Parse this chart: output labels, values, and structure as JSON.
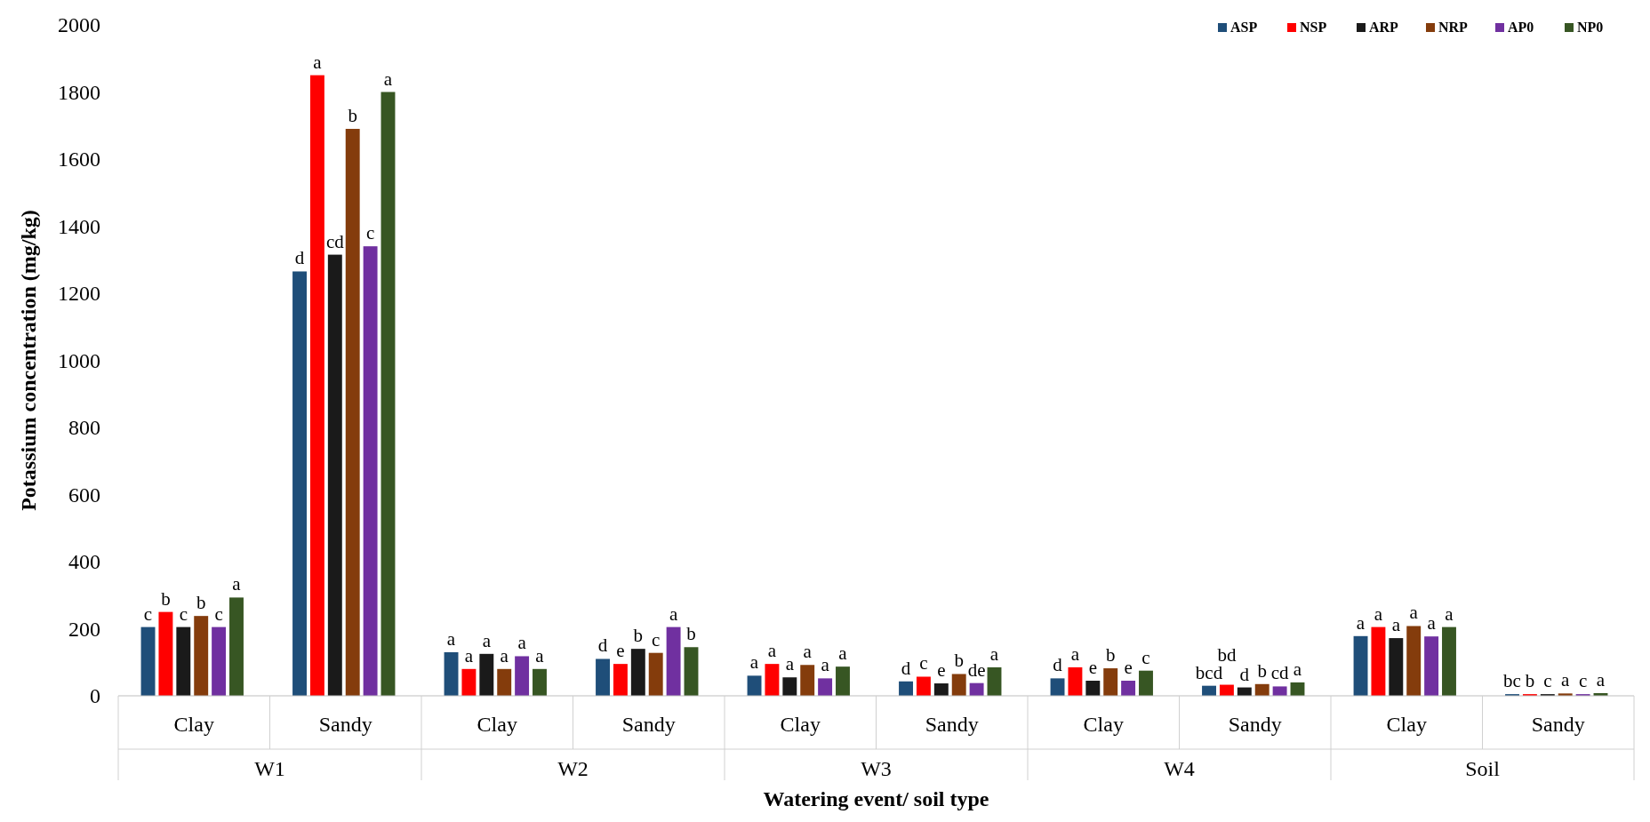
{
  "chart_data": {
    "type": "bar",
    "xlabel": "Watering event/ soil type",
    "ylabel": "Potassium concentration (mg/kg)",
    "categories": [
      "Clay",
      "Sandy",
      "Clay",
      "Sandy",
      "Clay",
      "Sandy",
      "Clay",
      "Sandy",
      "Clay",
      "Sandy"
    ],
    "annotations": [
      "W1",
      "W2",
      "W3",
      "W4",
      "Soil"
    ],
    "series": [
      {
        "name": "ASP",
        "color": "#1f4e79",
        "values": [
          205,
          1265,
          130,
          110,
          60,
          43,
          52,
          30,
          178,
          5
        ],
        "value_labels": [
          "c",
          "d",
          "a",
          "d",
          "a",
          "d",
          "d",
          "bcd",
          "a",
          "bc"
        ]
      },
      {
        "name": "NSP",
        "color": "#ff0000",
        "values": [
          250,
          1850,
          80,
          95,
          95,
          57,
          85,
          33,
          205,
          5
        ],
        "value_labels": [
          "b",
          "a",
          "a",
          "e",
          "a",
          "c",
          "a",
          "bd",
          "a",
          "b"
        ]
      },
      {
        "name": "ARP",
        "color": "#1a1a1a",
        "values": [
          205,
          1315,
          125,
          140,
          55,
          37,
          45,
          25,
          172,
          5
        ],
        "value_labels": [
          "c",
          "cd",
          "a",
          "b",
          "a",
          "e",
          "e",
          "d",
          "a",
          "c"
        ]
      },
      {
        "name": "NRP",
        "color": "#843c0c",
        "values": [
          238,
          1690,
          80,
          128,
          92,
          65,
          82,
          35,
          208,
          7
        ],
        "value_labels": [
          "b",
          "b",
          "a",
          "c",
          "a",
          "b",
          "b",
          "b",
          "a",
          "a"
        ]
      },
      {
        "name": "AP0",
        "color": "#7030a0",
        "values": [
          205,
          1340,
          118,
          205,
          52,
          38,
          45,
          28,
          177,
          5
        ],
        "value_labels": [
          "c",
          "c",
          "a",
          "a",
          "a",
          "de",
          "e",
          "cd",
          "a",
          "c"
        ]
      },
      {
        "name": "NP0",
        "color": "#375623",
        "values": [
          293,
          1800,
          80,
          145,
          87,
          85,
          75,
          40,
          205,
          8
        ],
        "value_labels": [
          "a",
          "a",
          "a",
          "b",
          "a",
          "a",
          "c",
          "a",
          "a",
          "a"
        ]
      }
    ],
    "ylim": [
      0,
      2000
    ],
    "yticks": [
      0,
      200,
      400,
      600,
      800,
      1000,
      1200,
      1400,
      1600,
      1800,
      2000
    ],
    "grid": false,
    "legend": "top right"
  }
}
